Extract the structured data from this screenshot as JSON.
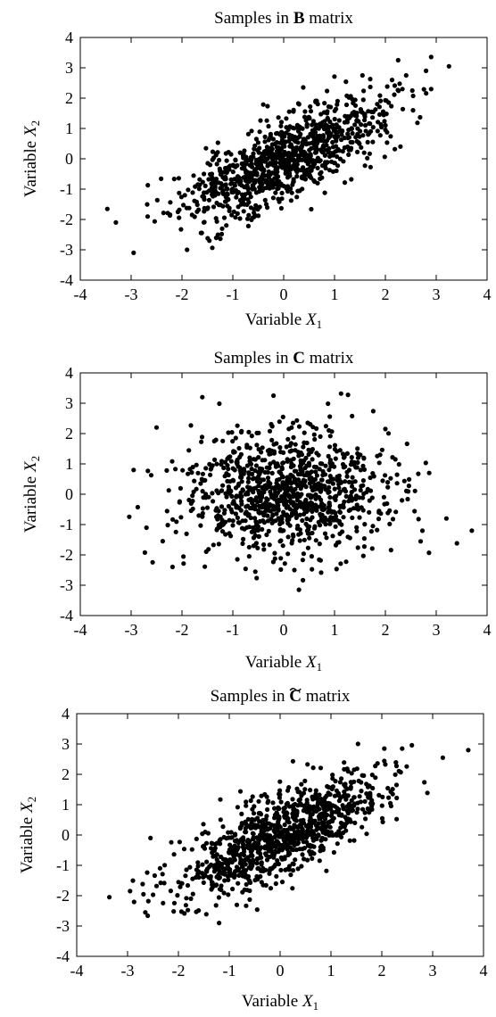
{
  "figure": {
    "panels": [
      {
        "title_prefix": "Samples in ",
        "title_symbol": "B",
        "title_suffix": " matrix",
        "tilde": false
      },
      {
        "title_prefix": "Samples in ",
        "title_symbol": "C",
        "title_suffix": " matrix",
        "tilde": false
      },
      {
        "title_prefix": "Samples in ",
        "title_symbol": "C",
        "title_suffix": " matrix",
        "tilde": true
      }
    ],
    "xlabel_text": "Variable ",
    "xlabel_var": "X",
    "xlabel_sub": "1",
    "ylabel_text": "Variable ",
    "ylabel_var": "X",
    "ylabel_sub": "2",
    "marker_color": "#000000"
  },
  "chart_data": [
    {
      "type": "scatter",
      "title": "Samples in B matrix",
      "xlabel": "Variable X1",
      "ylabel": "Variable X2",
      "xlim": [
        -4,
        4
      ],
      "ylim": [
        -4,
        4
      ],
      "xticks": [
        -4,
        -3,
        -2,
        -1,
        0,
        1,
        2,
        3,
        4
      ],
      "yticks": [
        -4,
        -3,
        -2,
        -1,
        0,
        1,
        2,
        3,
        4
      ],
      "grid": false,
      "generator": {
        "n": 1000,
        "mean": [
          0,
          0
        ],
        "sd": [
          1,
          1
        ],
        "correlation": 0.75,
        "seed": 11
      },
      "points": [
        [
          -3.3,
          -2.1
        ],
        [
          -2.95,
          -3.1
        ],
        [
          3.25,
          3.05
        ],
        [
          2.25,
          3.25
        ],
        [
          2.9,
          2.3
        ],
        [
          2.8,
          2.9
        ],
        [
          1.55,
          2.75
        ],
        [
          -1.9,
          -3.0
        ]
      ]
    },
    {
      "type": "scatter",
      "title": "Samples in C matrix",
      "xlabel": "Variable X1",
      "ylabel": "Variable X2",
      "xlim": [
        -4,
        4
      ],
      "ylim": [
        -4,
        4
      ],
      "xticks": [
        -4,
        -3,
        -2,
        -1,
        0,
        1,
        2,
        3,
        4
      ],
      "yticks": [
        -4,
        -3,
        -2,
        -1,
        0,
        1,
        2,
        3,
        4
      ],
      "grid": false,
      "generator": {
        "n": 1000,
        "mean": [
          0,
          0
        ],
        "sd": [
          1,
          1
        ],
        "correlation": 0.0,
        "seed": 23
      },
      "points": [
        [
          -2.95,
          0.8
        ],
        [
          3.7,
          -1.2
        ],
        [
          3.2,
          -0.8
        ],
        [
          -1.6,
          3.2
        ],
        [
          -0.2,
          3.25
        ],
        [
          0.3,
          -3.15
        ],
        [
          -2.5,
          2.2
        ],
        [
          2.0,
          2.15
        ]
      ]
    },
    {
      "type": "scatter",
      "title": "Samples in C̃ matrix",
      "xlabel": "Variable X1",
      "ylabel": "Variable X2",
      "xlim": [
        -4,
        4
      ],
      "ylim": [
        -4,
        4
      ],
      "xticks": [
        -4,
        -3,
        -2,
        -1,
        0,
        1,
        2,
        3,
        4
      ],
      "yticks": [
        -4,
        -3,
        -2,
        -1,
        0,
        1,
        2,
        3,
        4
      ],
      "grid": false,
      "generator": {
        "n": 1000,
        "mean": [
          0,
          0
        ],
        "sd": [
          1,
          1
        ],
        "correlation": 0.75,
        "seed": 37
      },
      "points": [
        [
          -2.95,
          -1.85
        ],
        [
          3.7,
          2.8
        ],
        [
          3.2,
          2.55
        ],
        [
          -2.55,
          -0.1
        ],
        [
          -1.2,
          -2.9
        ],
        [
          2.05,
          2.85
        ],
        [
          2.4,
          2.85
        ],
        [
          -2.65,
          -2.55
        ]
      ]
    }
  ]
}
